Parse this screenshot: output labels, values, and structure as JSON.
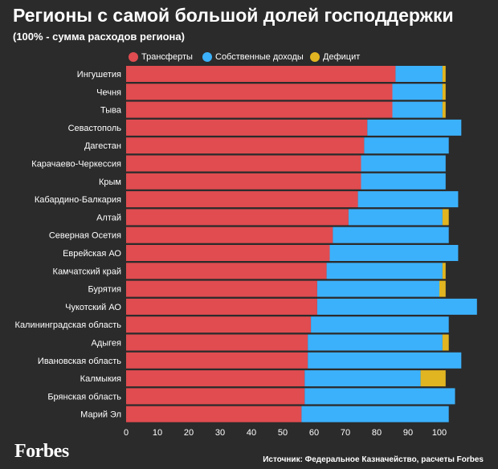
{
  "header": {
    "title": "Регионы с самой большой долей господдержки",
    "subtitle": "(100% - сумма расходов региона)"
  },
  "legend": [
    {
      "label": "Трансферты",
      "color": "#e04c50"
    },
    {
      "label": "Собственные доходы",
      "color": "#3cb1fb"
    },
    {
      "label": "Дефицит",
      "color": "#e1b521"
    }
  ],
  "chart_data": {
    "type": "bar",
    "orientation": "horizontal",
    "stacked": true,
    "title": "Регионы с самой большой долей господдержки",
    "subtitle": "(100% - сумма расходов региона)",
    "categories": [
      "Ингушетия",
      "Чечня",
      "Тыва",
      "Севастополь",
      "Дагестан",
      "Карачаево-Черкессия",
      "Крым",
      "Кабардино-Балкария",
      "Алтай",
      "Северная Осетия",
      "Еврейская АО",
      "Камчатский край",
      "Бурятия",
      "Чукотский АО",
      "Калининградская область",
      "Адыгея",
      "Ивановская область",
      "Калмыкия",
      "Брянская область",
      "Марий Эл"
    ],
    "series": [
      {
        "name": "Трансферты",
        "color": "#e04c50",
        "values": [
          86,
          85,
          85,
          77,
          76,
          75,
          75,
          74,
          71,
          66,
          65,
          64,
          61,
          61,
          59,
          58,
          58,
          57,
          57,
          56
        ]
      },
      {
        "name": "Собственные доходы",
        "color": "#3cb1fb",
        "values": [
          15,
          16,
          16,
          30,
          27,
          27,
          27,
          32,
          30,
          37,
          41,
          37,
          39,
          51,
          44,
          43,
          49,
          37,
          48,
          47
        ]
      },
      {
        "name": "Дефицит",
        "color": "#e1b521",
        "values": [
          1,
          1,
          1,
          0,
          0,
          0,
          0,
          0,
          2,
          0,
          0,
          1,
          2,
          0,
          0,
          2,
          0,
          8,
          0,
          0
        ]
      }
    ],
    "xlim": [
      0,
      110
    ],
    "xticks": [
      0,
      10,
      20,
      30,
      40,
      50,
      60,
      70,
      80,
      90,
      100
    ],
    "grid": false,
    "legend_position": "top"
  },
  "footer": {
    "brand": "Forbes",
    "source": "Источник: Федеральное Казначейство, расчеты Forbes"
  }
}
